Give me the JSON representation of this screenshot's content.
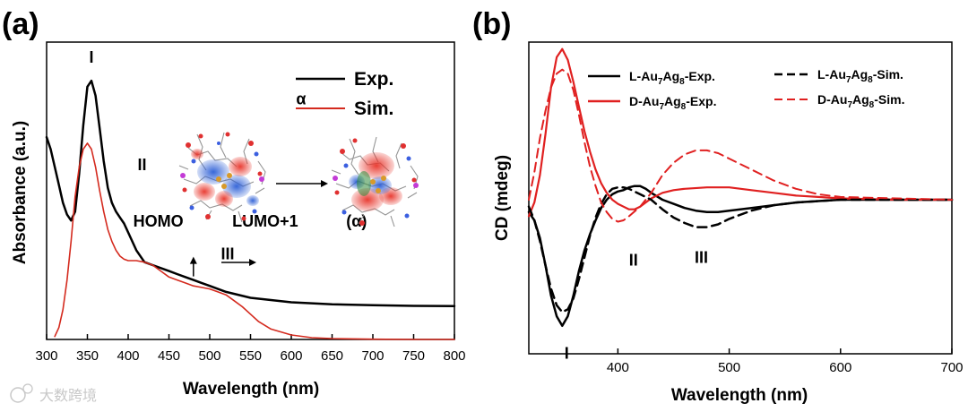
{
  "chart_data": [
    {
      "panel": "(a)",
      "type": "line",
      "title": "",
      "xlabel": "Wavelength (nm)",
      "ylabel": "Absorbance (a.u.)",
      "xlim": [
        300,
        800
      ],
      "ylim": [
        0,
        1
      ],
      "xticks": [
        300,
        350,
        400,
        450,
        500,
        550,
        600,
        650,
        700,
        750,
        800
      ],
      "legend_position": "top-right",
      "series": [
        {
          "name": "Exp.",
          "color": "#000000",
          "x": [
            300,
            305,
            310,
            315,
            320,
            325,
            330,
            335,
            340,
            345,
            350,
            355,
            360,
            365,
            370,
            375,
            380,
            385,
            390,
            395,
            400,
            410,
            420,
            430,
            440,
            450,
            460,
            470,
            480,
            490,
            500,
            520,
            550,
            600,
            650,
            700,
            750,
            800
          ],
          "y": [
            0.68,
            0.64,
            0.58,
            0.52,
            0.46,
            0.42,
            0.4,
            0.43,
            0.56,
            0.72,
            0.85,
            0.87,
            0.82,
            0.71,
            0.6,
            0.51,
            0.46,
            0.43,
            0.41,
            0.39,
            0.36,
            0.3,
            0.26,
            0.25,
            0.24,
            0.23,
            0.22,
            0.21,
            0.2,
            0.19,
            0.18,
            0.16,
            0.14,
            0.125,
            0.118,
            0.115,
            0.113,
            0.112
          ]
        },
        {
          "name": "Sim.",
          "color": "#d42a1e",
          "x": [
            310,
            315,
            320,
            325,
            330,
            335,
            340,
            345,
            350,
            355,
            360,
            365,
            370,
            375,
            380,
            385,
            390,
            395,
            400,
            405,
            410,
            420,
            430,
            440,
            450,
            460,
            470,
            480,
            490,
            500,
            510,
            520,
            530,
            540,
            550,
            560,
            575,
            600,
            625,
            650,
            700,
            750,
            800
          ],
          "y": [
            0.01,
            0.04,
            0.1,
            0.2,
            0.33,
            0.48,
            0.58,
            0.64,
            0.66,
            0.64,
            0.58,
            0.5,
            0.43,
            0.37,
            0.33,
            0.3,
            0.28,
            0.27,
            0.265,
            0.265,
            0.265,
            0.26,
            0.25,
            0.23,
            0.21,
            0.2,
            0.19,
            0.18,
            0.175,
            0.17,
            0.16,
            0.15,
            0.13,
            0.11,
            0.085,
            0.06,
            0.035,
            0.015,
            0.006,
            0.003,
            0.001,
            0.0,
            0.0
          ]
        }
      ],
      "annotations": [
        {
          "text": "I",
          "x": 355,
          "y": 0.93
        },
        {
          "text": "II",
          "x": 417,
          "y": 0.57
        },
        {
          "text": "III",
          "x": 522,
          "y": 0.27
        },
        {
          "text": "HOMO",
          "x": 437,
          "y": 0.38
        },
        {
          "text": "LUMO+1",
          "x": 568,
          "y": 0.38
        },
        {
          "text": "(α)",
          "x": 680,
          "y": 0.38
        },
        {
          "text": "α",
          "x": 612,
          "y": 0.79
        }
      ],
      "transition_wavelength": 480
    },
    {
      "panel": "(b)",
      "type": "line",
      "title": "",
      "xlabel": "Wavelength (nm)",
      "ylabel": "CD (mdeg)",
      "xlim": [
        320,
        700
      ],
      "ylim": [
        -1,
        1
      ],
      "xticks": [
        400,
        500,
        600,
        700
      ],
      "legend_position": "top",
      "series": [
        {
          "name": "L-Au7Ag8-Exp.",
          "color": "#000000",
          "style": "solid",
          "x": [
            320,
            325,
            330,
            335,
            340,
            345,
            350,
            355,
            360,
            365,
            370,
            375,
            380,
            385,
            390,
            395,
            400,
            405,
            410,
            415,
            420,
            425,
            430,
            440,
            450,
            460,
            470,
            480,
            490,
            500,
            520,
            540,
            560,
            580,
            600,
            650,
            700
          ],
          "y": [
            -0.09,
            -0.15,
            -0.28,
            -0.48,
            -0.7,
            -0.85,
            -0.92,
            -0.85,
            -0.7,
            -0.52,
            -0.37,
            -0.25,
            -0.15,
            -0.06,
            0.0,
            0.04,
            0.06,
            0.07,
            0.09,
            0.1,
            0.1,
            0.08,
            0.05,
            0.0,
            -0.03,
            -0.06,
            -0.08,
            -0.09,
            -0.09,
            -0.08,
            -0.06,
            -0.04,
            -0.02,
            -0.01,
            0.0,
            0.0,
            0.0
          ]
        },
        {
          "name": "D-Au7Ag8-Exp.",
          "color": "#e02020",
          "style": "solid",
          "x": [
            320,
            325,
            330,
            335,
            340,
            345,
            350,
            355,
            360,
            365,
            370,
            375,
            380,
            385,
            390,
            395,
            400,
            405,
            410,
            415,
            420,
            425,
            430,
            440,
            450,
            460,
            480,
            500,
            520,
            540,
            560,
            580,
            600,
            650,
            700
          ],
          "y": [
            -0.12,
            -0.02,
            0.18,
            0.48,
            0.82,
            1.04,
            1.1,
            1.02,
            0.86,
            0.68,
            0.5,
            0.35,
            0.22,
            0.12,
            0.05,
            0.0,
            -0.03,
            -0.05,
            -0.07,
            -0.07,
            -0.05,
            -0.02,
            0.01,
            0.05,
            0.07,
            0.08,
            0.09,
            0.09,
            0.07,
            0.05,
            0.03,
            0.02,
            0.01,
            0.0,
            0.0
          ]
        },
        {
          "name": "L-Au7Ag8-Sim.",
          "color": "#000000",
          "style": "dashed",
          "x": [
            320,
            325,
            330,
            335,
            340,
            345,
            350,
            355,
            360,
            365,
            370,
            375,
            380,
            385,
            390,
            395,
            400,
            405,
            410,
            420,
            430,
            440,
            450,
            460,
            470,
            480,
            490,
            500,
            520,
            540,
            560,
            580,
            600,
            650,
            700
          ],
          "y": [
            -0.05,
            -0.15,
            -0.3,
            -0.48,
            -0.65,
            -0.77,
            -0.82,
            -0.8,
            -0.72,
            -0.58,
            -0.42,
            -0.26,
            -0.13,
            -0.03,
            0.04,
            0.08,
            0.09,
            0.09,
            0.08,
            0.04,
            0.0,
            -0.07,
            -0.13,
            -0.17,
            -0.2,
            -0.2,
            -0.18,
            -0.14,
            -0.08,
            -0.04,
            -0.02,
            -0.01,
            0.0,
            0.0,
            0.0
          ]
        },
        {
          "name": "D-Au7Ag8-Sim.",
          "color": "#e02020",
          "style": "dashed",
          "x": [
            320,
            325,
            330,
            335,
            340,
            345,
            350,
            355,
            360,
            365,
            370,
            375,
            380,
            385,
            390,
            395,
            400,
            405,
            410,
            420,
            430,
            440,
            450,
            460,
            470,
            480,
            490,
            500,
            520,
            540,
            560,
            580,
            600,
            650,
            700
          ],
          "y": [
            0.0,
            0.2,
            0.45,
            0.65,
            0.82,
            0.92,
            0.95,
            0.92,
            0.8,
            0.62,
            0.42,
            0.24,
            0.1,
            -0.02,
            -0.09,
            -0.14,
            -0.16,
            -0.15,
            -0.12,
            -0.05,
            0.05,
            0.18,
            0.27,
            0.33,
            0.36,
            0.36,
            0.34,
            0.3,
            0.22,
            0.14,
            0.08,
            0.04,
            0.02,
            0.01,
            0.0
          ]
        }
      ],
      "annotations": [
        {
          "text": "I",
          "x": 354,
          "y": -1.16
        },
        {
          "text": "II",
          "x": 414,
          "y": -0.48
        },
        {
          "text": "III",
          "x": 475,
          "y": -0.46
        }
      ]
    }
  ],
  "watermark": "大数跨境"
}
